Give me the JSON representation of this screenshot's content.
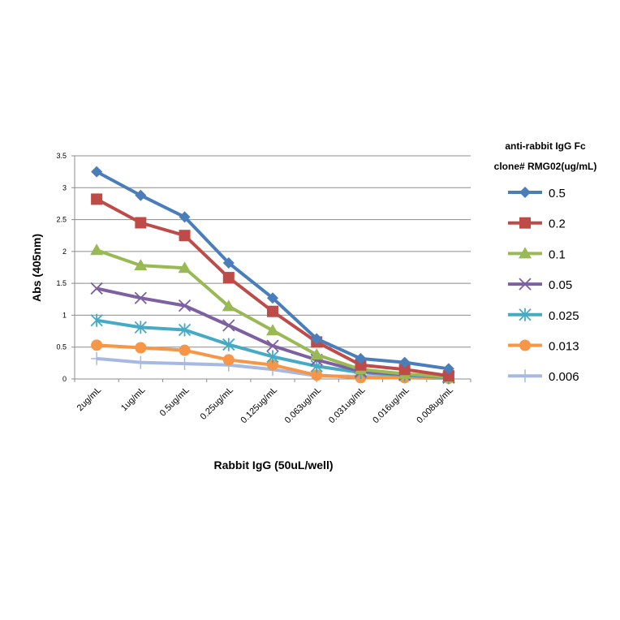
{
  "chart_data": {
    "type": "line",
    "title": "",
    "xlabel": "Rabbit IgG (50uL/well)",
    "ylabel": "Abs (405nm)",
    "ylim": [
      0,
      3.5
    ],
    "yticks": [
      "0",
      "0.5",
      "1",
      "1.5",
      "2",
      "2.5",
      "3",
      "3.5"
    ],
    "grid": true,
    "legend_placement": "right",
    "legend_title": [
      "anti-rabbit IgG Fc",
      "clone# RMG02(ug/mL)"
    ],
    "categories": [
      "2ug/mL",
      "1ug/mL",
      "0.5ug/mL",
      "0.25ug/mL",
      "0.125ug/mL",
      "0.063ug/mL",
      "0.031ug/mL",
      "0.016ug/mL",
      "0.008ug/mL"
    ],
    "series": [
      {
        "name": "0.5",
        "color": "#4a7ebb",
        "marker": "diamond",
        "values": [
          3.25,
          2.88,
          2.54,
          1.82,
          1.27,
          0.63,
          0.32,
          0.26,
          0.16
        ]
      },
      {
        "name": "0.2",
        "color": "#be4b48",
        "marker": "square",
        "values": [
          2.82,
          2.45,
          2.25,
          1.59,
          1.06,
          0.58,
          0.22,
          0.15,
          0.05
        ]
      },
      {
        "name": "0.1",
        "color": "#98b954",
        "marker": "triangle",
        "values": [
          2.02,
          1.78,
          1.74,
          1.14,
          0.76,
          0.38,
          0.15,
          0.08,
          0.03
        ]
      },
      {
        "name": "0.05",
        "color": "#7d60a0",
        "marker": "x",
        "values": [
          1.42,
          1.27,
          1.15,
          0.84,
          0.52,
          0.3,
          0.12,
          0.07,
          0.03
        ]
      },
      {
        "name": "0.025",
        "color": "#46aac5",
        "marker": "star",
        "values": [
          0.92,
          0.81,
          0.77,
          0.54,
          0.35,
          0.2,
          0.1,
          0.06,
          0.02
        ]
      },
      {
        "name": "0.013",
        "color": "#f79646",
        "marker": "circle",
        "values": [
          0.53,
          0.49,
          0.45,
          0.3,
          0.22,
          0.06,
          0.02,
          0.02,
          0.01
        ]
      },
      {
        "name": "0.006",
        "color": "#a7b9e3",
        "marker": "plus",
        "values": [
          0.32,
          0.26,
          0.24,
          0.22,
          0.15,
          0.05,
          0.04,
          0.03,
          0.02
        ]
      }
    ]
  }
}
